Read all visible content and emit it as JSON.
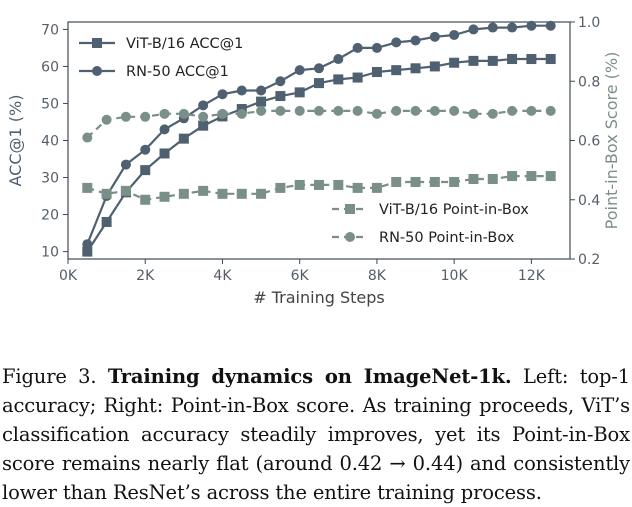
{
  "chart_data": {
    "type": "line",
    "x_axis": {
      "label": "# Training Steps",
      "range": [
        0,
        13000
      ],
      "ticks": [
        0,
        2000,
        4000,
        6000,
        8000,
        10000,
        12000
      ],
      "tick_labels": [
        "0K",
        "2K",
        "4K",
        "6K",
        "8K",
        "10K",
        "12K"
      ]
    },
    "y_left": {
      "label": "ACC@1 (%)",
      "range": [
        8,
        72
      ],
      "ticks": [
        10,
        20,
        30,
        40,
        50,
        60,
        70
      ],
      "tick_labels": [
        "10",
        "20",
        "30",
        "40",
        "50",
        "60",
        "70"
      ],
      "color": "#4f6070"
    },
    "y_right": {
      "label": "Point-in-Box Score (%)",
      "range": [
        0.2,
        1.0
      ],
      "ticks": [
        0.2,
        0.4,
        0.6,
        0.8,
        1.0
      ],
      "tick_labels": [
        "0.2",
        "0.4",
        "0.6",
        "0.8",
        "1.0"
      ],
      "color": "#7b8f8a"
    },
    "x": [
      500,
      1000,
      1500,
      2000,
      2500,
      3000,
      3500,
      4000,
      4500,
      5000,
      5500,
      6000,
      6500,
      7000,
      7500,
      8000,
      8500,
      9000,
      9500,
      10000,
      10500,
      11000,
      11500,
      12000,
      12500
    ],
    "series": [
      {
        "name": "ViT-B/16 ACC@1",
        "axis": "left",
        "marker": "square",
        "style": "solid",
        "color": "#4f6070",
        "values": [
          10,
          18,
          26,
          32,
          36.5,
          40.5,
          44,
          46.5,
          48.5,
          50.5,
          52,
          53,
          55.5,
          56.5,
          57,
          58.5,
          59,
          59.5,
          60,
          61,
          61.5,
          61.5,
          62,
          62,
          62
        ]
      },
      {
        "name": "RN-50 ACC@1",
        "axis": "left",
        "marker": "circle",
        "style": "solid",
        "color": "#4f6070",
        "values": [
          12,
          25,
          33.5,
          37.5,
          43,
          46,
          49.5,
          52.5,
          53.5,
          53.5,
          56,
          59,
          59.5,
          62,
          65,
          65,
          66.5,
          67,
          68,
          68.5,
          70,
          70.5,
          70.5,
          71,
          71
        ]
      },
      {
        "name": "ViT-B/16 Point-in-Box",
        "axis": "right",
        "marker": "square",
        "style": "dashed",
        "color": "#7b8f8a",
        "values": [
          0.44,
          0.42,
          0.43,
          0.4,
          0.41,
          0.42,
          0.43,
          0.42,
          0.42,
          0.42,
          0.44,
          0.45,
          0.45,
          0.45,
          0.44,
          0.44,
          0.46,
          0.46,
          0.46,
          0.46,
          0.47,
          0.47,
          0.48,
          0.48,
          0.48
        ]
      },
      {
        "name": "RN-50 Point-in-Box",
        "axis": "right",
        "marker": "circle",
        "style": "dashed",
        "color": "#7b8f8a",
        "values": [
          0.61,
          0.67,
          0.68,
          0.68,
          0.69,
          0.69,
          0.68,
          0.69,
          0.69,
          0.7,
          0.7,
          0.7,
          0.7,
          0.7,
          0.7,
          0.69,
          0.7,
          0.7,
          0.7,
          0.7,
          0.69,
          0.69,
          0.7,
          0.7,
          0.7
        ]
      }
    ],
    "grid": false,
    "legends": [
      {
        "placement": "top-left",
        "entries": [
          "ViT-B/16 ACC@1",
          "RN-50 ACC@1"
        ]
      },
      {
        "placement": "bottom-right",
        "entries": [
          "ViT-B/16 Point-in-Box",
          "RN-50 Point-in-Box"
        ]
      }
    ]
  },
  "caption": {
    "label": "Figure 3.",
    "title": "Training dynamics on ImageNet-1k.",
    "body": "Left: top-1 accuracy; Right: Point-in-Box score. As training proceeds, ViT’s classification accuracy steadily improves, yet its Point-in-Box score remains nearly flat (around 0.42 → 0.44) and consistently lower than ResNet’s across the entire training process."
  }
}
